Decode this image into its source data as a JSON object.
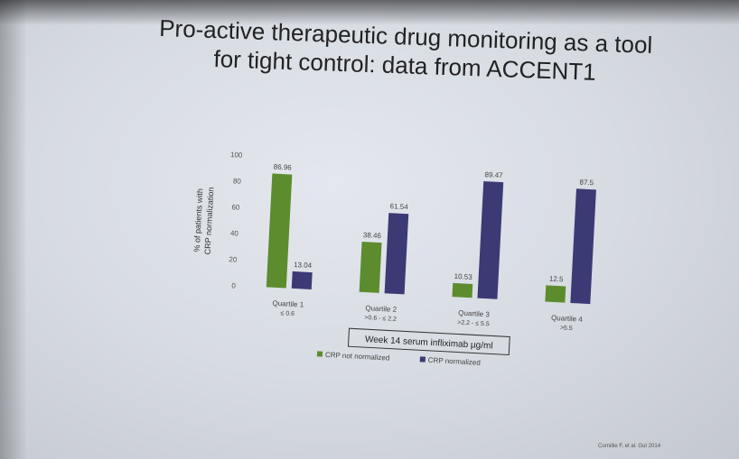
{
  "slide": {
    "title_line1": "Pro-active therapeutic drug monitoring as a tool",
    "title_line2": "for tight control: data from ACCENT1",
    "citation": "Cornillie F, et al. Gut 2014"
  },
  "chart_data": {
    "type": "bar",
    "title": "",
    "ylabel_line1": "% of patients with",
    "ylabel_line2": "CRP normalization",
    "xlabel": "Week 14 serum infliximab µg/ml",
    "ylim": [
      0,
      100
    ],
    "yticks": [
      0,
      20,
      40,
      60,
      80,
      100
    ],
    "categories": [
      {
        "line1": "Quartile 1",
        "line2": "≤ 0.6"
      },
      {
        "line1": "Quartile 2",
        "line2": ">0.6 - ≤ 2.2"
      },
      {
        "line1": "Quartile 3",
        "line2": ">2.2 - ≤ 5.5"
      },
      {
        "line1": "Quartile 4",
        "line2": ">5.5"
      }
    ],
    "series": [
      {
        "name": "CRP not normalized",
        "color": "#5d8c2e",
        "values": [
          86.96,
          38.46,
          10.53,
          12.5
        ],
        "labels": [
          "86.96",
          "38.46",
          "10.53",
          "12.5"
        ]
      },
      {
        "name": "CRP normalized",
        "color": "#3c3a74",
        "values": [
          13.04,
          61.54,
          89.47,
          87.5
        ],
        "labels": [
          "13.04",
          "61.54",
          "89.47",
          "87.5"
        ]
      }
    ],
    "legend_position": "bottom",
    "grid": false
  }
}
